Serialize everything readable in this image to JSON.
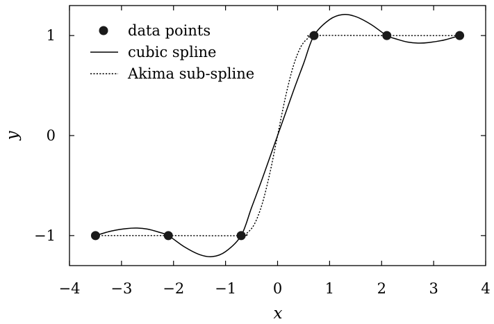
{
  "chart_data": {
    "type": "line",
    "xlabel": "x",
    "ylabel": "y",
    "xlim": [
      -4,
      4
    ],
    "ylim": [
      -1.3,
      1.3
    ],
    "xticks": [
      -4,
      -3,
      -2,
      -1,
      0,
      1,
      2,
      3,
      4
    ],
    "xtick_labels": [
      "−4",
      "−3",
      "−2",
      "−1",
      "0",
      "1",
      "2",
      "3",
      "4"
    ],
    "yticks": [
      -1,
      0,
      1
    ],
    "ytick_labels": [
      "−1",
      "0",
      "1"
    ],
    "grid": false,
    "legend_position": "top-left",
    "series": [
      {
        "name": "data points",
        "style": "markers",
        "color": "#1a1a1a",
        "x": [
          -3.5,
          -2.1,
          -0.7,
          0.7,
          2.1,
          3.5
        ],
        "y": [
          -1,
          -1,
          -1,
          1,
          1,
          1
        ]
      },
      {
        "name": "cubic spline",
        "style": "solid",
        "color": "#000000",
        "x": [
          -3.5,
          -3.2,
          -2.9,
          -2.7,
          -2.5,
          -2.3,
          -2.1,
          -1.8,
          -1.5,
          -1.25,
          -1.0,
          -0.7,
          -0.5,
          -0.3,
          0,
          0.3,
          0.5,
          0.7,
          1.0,
          1.25,
          1.5,
          1.8,
          2.1,
          2.3,
          2.5,
          2.7,
          2.9,
          3.2,
          3.5
        ],
        "y": [
          -1,
          -0.955,
          -0.93,
          -0.925,
          -0.935,
          -0.963,
          -1,
          -1.11,
          -1.19,
          -1.21,
          -1.16,
          -1,
          -0.72,
          -0.44,
          0,
          0.44,
          0.72,
          1,
          1.16,
          1.21,
          1.19,
          1.11,
          1,
          0.963,
          0.935,
          0.925,
          0.93,
          0.955,
          1
        ]
      },
      {
        "name": "Akima sub-spline",
        "style": "dotted",
        "color": "#000000",
        "x": [
          -3.5,
          -2.1,
          -0.7,
          -0.6,
          -0.45,
          -0.3,
          -0.15,
          0,
          0.15,
          0.3,
          0.45,
          0.6,
          0.7,
          2.1,
          3.5
        ],
        "y": [
          -1,
          -1,
          -1,
          -0.98,
          -0.89,
          -0.69,
          -0.38,
          0,
          0.38,
          0.69,
          0.89,
          0.98,
          1,
          1,
          1
        ]
      }
    ]
  }
}
